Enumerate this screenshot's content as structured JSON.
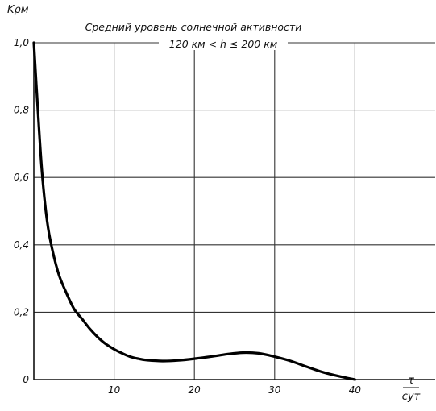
{
  "chart_data": {
    "type": "line",
    "title": "Средний уровень солнечной активности",
    "subtitle": "120 км < h ≤ 200 км",
    "ylabel": "Kρм",
    "xlabel": "τ",
    "xunit": "сут",
    "xlim": [
      0,
      50
    ],
    "ylim": [
      0,
      1.0
    ],
    "grid": true,
    "x_ticks": [
      10,
      20,
      30,
      40
    ],
    "x_tick_labels": [
      "10",
      "20",
      "30",
      "40"
    ],
    "y_ticks": [
      0,
      0.2,
      0.4,
      0.6,
      0.8,
      1.0
    ],
    "y_tick_labels": [
      "0",
      "0,2",
      "0,4",
      "0,6",
      "0,8",
      "1,0"
    ],
    "series": [
      {
        "x": [
          0,
          0.5,
          1,
          1.5,
          2,
          3,
          4,
          5,
          6,
          7,
          8,
          9,
          10,
          11,
          12,
          13,
          14,
          16,
          18,
          20,
          22,
          24,
          26,
          28,
          30,
          32,
          34,
          36,
          38,
          40
        ],
        "y": [
          1.0,
          0.8,
          0.62,
          0.5,
          0.42,
          0.32,
          0.26,
          0.21,
          0.18,
          0.15,
          0.125,
          0.105,
          0.09,
          0.078,
          0.068,
          0.062,
          0.058,
          0.055,
          0.057,
          0.062,
          0.068,
          0.075,
          0.08,
          0.078,
          0.068,
          0.055,
          0.038,
          0.022,
          0.01,
          0.0
        ]
      }
    ]
  }
}
